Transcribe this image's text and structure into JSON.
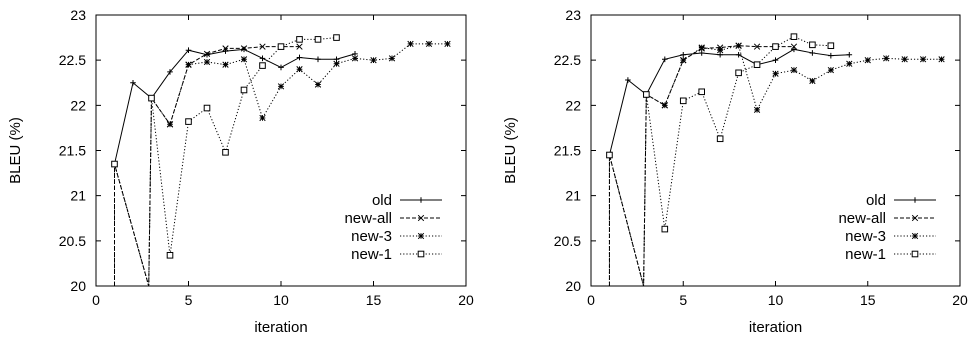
{
  "chart_data": [
    {
      "type": "line",
      "xlabel": "iteration",
      "ylabel": "BLEU (%)",
      "xlim": [
        0,
        20
      ],
      "ylim": [
        20,
        23
      ],
      "xticks": [
        "0",
        "5",
        "10",
        "15",
        "20"
      ],
      "yticks": [
        "20",
        "20.5",
        "21",
        "21.5",
        "22",
        "22.5",
        "23"
      ],
      "legend_position": "bottom-right",
      "series": [
        {
          "name": "old",
          "line": "solid",
          "marker": "plus",
          "x": [
            1,
            2,
            3,
            4,
            5,
            6,
            7,
            8,
            9,
            10,
            11,
            12,
            13,
            14
          ],
          "y": [
            21.35,
            22.25,
            22.08,
            22.37,
            22.61,
            22.56,
            22.6,
            22.62,
            22.52,
            22.42,
            22.53,
            22.51,
            22.51,
            22.57
          ]
        },
        {
          "name": "new-all",
          "line": "dashed",
          "marker": "x",
          "x": [
            1,
            1,
            2.85,
            3,
            4,
            5,
            6,
            7,
            8,
            9,
            10,
            11
          ],
          "y": [
            20,
            21.35,
            20,
            22.08,
            21.79,
            22.45,
            22.57,
            22.63,
            22.63,
            22.65,
            22.65,
            22.65
          ]
        },
        {
          "name": "new-3",
          "line": "dotted",
          "marker": "star",
          "x": [
            1,
            1,
            2.85,
            3,
            4,
            5,
            6,
            7,
            8,
            9,
            10,
            11,
            12,
            13,
            14,
            15,
            16,
            17,
            18,
            19
          ],
          "y": [
            20,
            21.35,
            20,
            22.08,
            21.79,
            22.45,
            22.48,
            22.45,
            22.51,
            21.86,
            22.21,
            22.4,
            22.23,
            22.46,
            22.52,
            22.5,
            22.52,
            22.68,
            22.68,
            22.68
          ]
        },
        {
          "name": "new-1",
          "line": "dotted",
          "marker": "square",
          "x": [
            1,
            1,
            2.85,
            3,
            4,
            5,
            6,
            7,
            8,
            9,
            10,
            11,
            12,
            13
          ],
          "y": [
            20,
            21.35,
            20,
            22.08,
            20.34,
            21.82,
            21.97,
            21.48,
            22.17,
            22.44,
            22.65,
            22.73,
            22.73,
            22.75
          ]
        }
      ]
    },
    {
      "type": "line",
      "xlabel": "iteration",
      "ylabel": "BLEU (%)",
      "xlim": [
        0,
        20
      ],
      "ylim": [
        20,
        23
      ],
      "xticks": [
        "0",
        "5",
        "10",
        "15",
        "20"
      ],
      "yticks": [
        "20",
        "20.5",
        "21",
        "21.5",
        "22",
        "22.5",
        "23"
      ],
      "legend_position": "bottom-right",
      "series": [
        {
          "name": "old",
          "line": "solid",
          "marker": "plus",
          "x": [
            1,
            2,
            3,
            4,
            5,
            6,
            7,
            8,
            9,
            10,
            11,
            12,
            13,
            14
          ],
          "y": [
            21.45,
            22.28,
            22.12,
            22.51,
            22.56,
            22.58,
            22.56,
            22.56,
            22.45,
            22.5,
            22.62,
            22.58,
            22.55,
            22.56
          ]
        },
        {
          "name": "new-all",
          "line": "dashed",
          "marker": "x",
          "x": [
            1,
            1,
            2.85,
            3,
            4,
            5,
            6,
            7,
            8,
            9,
            10,
            11
          ],
          "y": [
            20,
            21.45,
            20,
            22.12,
            22.0,
            22.5,
            22.63,
            22.64,
            22.66,
            22.65,
            22.65,
            22.65
          ]
        },
        {
          "name": "new-3",
          "line": "dotted",
          "marker": "star",
          "x": [
            1,
            1,
            2.85,
            3,
            4,
            5,
            6,
            7,
            8,
            9,
            10,
            11,
            12,
            13,
            14,
            15,
            16,
            17,
            18,
            19
          ],
          "y": [
            20,
            21.45,
            20,
            22.12,
            22.0,
            22.5,
            22.64,
            22.61,
            22.66,
            21.95,
            22.35,
            22.39,
            22.27,
            22.39,
            22.46,
            22.5,
            22.52,
            22.51,
            22.51,
            22.51
          ]
        },
        {
          "name": "new-1",
          "line": "dotted",
          "marker": "square",
          "x": [
            1,
            1,
            2.85,
            3,
            4,
            5,
            6,
            7,
            8,
            9,
            10,
            11,
            12,
            13
          ],
          "y": [
            20,
            21.45,
            20,
            22.12,
            20.63,
            22.05,
            22.15,
            21.63,
            22.36,
            22.45,
            22.65,
            22.76,
            22.67,
            22.66
          ]
        }
      ]
    }
  ]
}
